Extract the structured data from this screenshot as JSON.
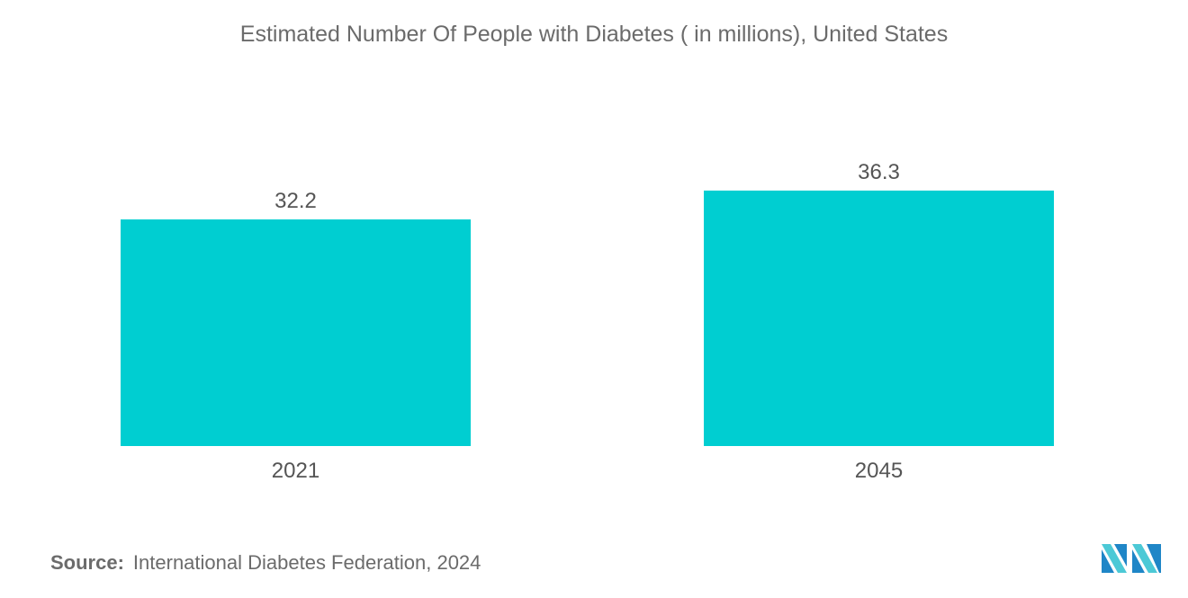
{
  "chart_data": {
    "type": "bar",
    "title": "Estimated Number Of People with Diabetes ( in millions), United States",
    "categories": [
      "2021",
      "2045"
    ],
    "values": [
      32.2,
      36.3
    ],
    "value_labels": [
      "32.2",
      "36.3"
    ],
    "xlabel": "",
    "ylabel": "",
    "ylim": [
      0,
      40
    ],
    "grid": false,
    "bar_color": "#00ced1"
  },
  "source": {
    "label": "Source:",
    "text": "International Diabetes Federation, 2024"
  },
  "logo": {
    "colors": [
      "#1f86c7",
      "#4cc9d6"
    ]
  }
}
